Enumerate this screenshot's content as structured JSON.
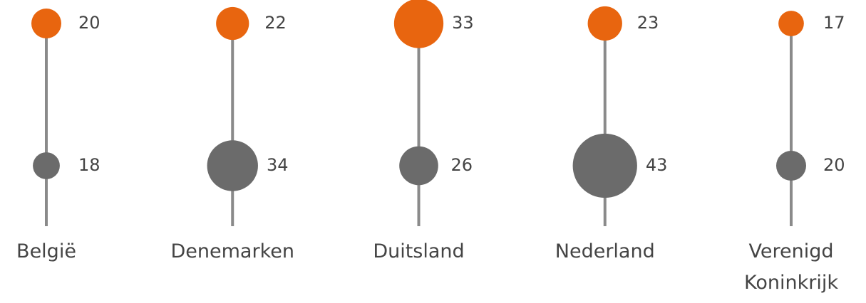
{
  "chart_data": {
    "type": "dot",
    "categories": [
      "België",
      "Denemarken",
      "Duitsland",
      "Nederland",
      "Verenigd Koninkrijk"
    ],
    "series": [
      {
        "color": "#e8650f",
        "values": [
          20,
          22,
          33,
          23,
          17
        ]
      },
      {
        "color": "#6b6b6b",
        "values": [
          18,
          34,
          26,
          43,
          20
        ]
      }
    ]
  }
}
